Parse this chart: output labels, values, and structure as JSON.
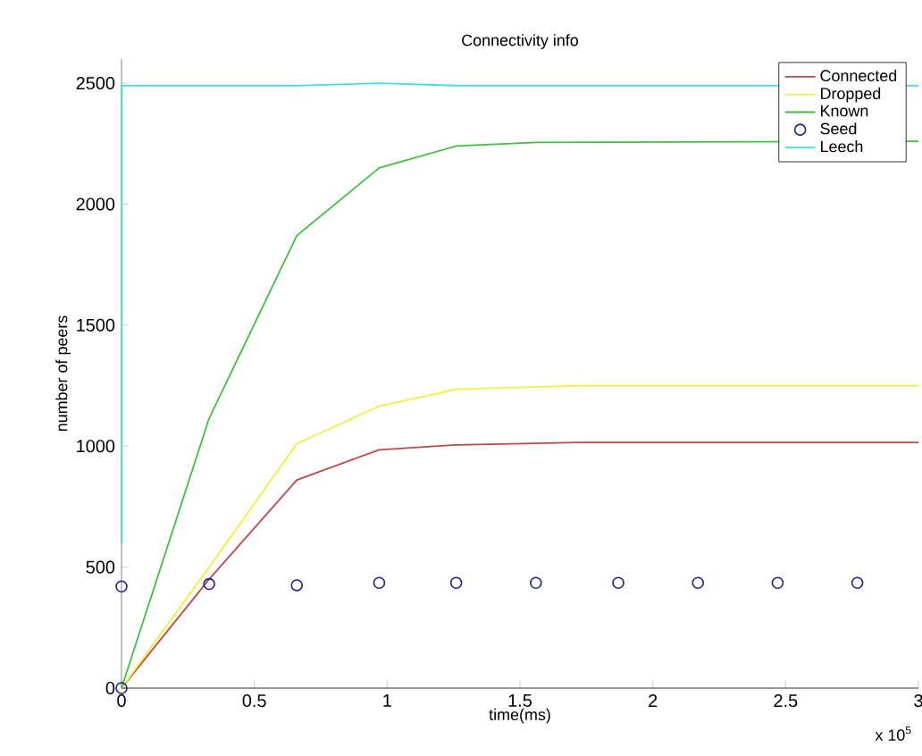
{
  "chart_data": {
    "type": "line",
    "title": "Connectivity info",
    "xlabel": "time(ms)",
    "ylabel": "number of peers",
    "annotations": [
      "x 10$^{5}$"
    ],
    "xlim": [
      0,
      3
    ],
    "ylim": [
      0,
      2600
    ],
    "xticks": [
      0,
      0.5,
      1,
      1.5,
      2,
      2.5,
      3
    ],
    "yticks": [
      0,
      500,
      1000,
      1500,
      2000,
      2500
    ],
    "grid": false,
    "legend": "top right",
    "series": [
      {
        "name": "Connected",
        "color": "#c04848",
        "marker": "none",
        "x": [
          0,
          0.33,
          0.66,
          0.97,
          1.26,
          1.72,
          3
        ],
        "values": [
          0,
          450,
          860,
          985,
          1005,
          1015,
          1015
        ]
      },
      {
        "name": "Dropped",
        "color": "#f0f040",
        "marker": "none",
        "x": [
          0,
          0.33,
          0.66,
          0.97,
          1.26,
          1.72,
          3
        ],
        "values": [
          0,
          500,
          1010,
          1165,
          1235,
          1250,
          1250
        ]
      },
      {
        "name": "Known",
        "color": "#40c040",
        "marker": "none",
        "x": [
          0,
          0.33,
          0.66,
          0.97,
          1.26,
          1.56,
          3
        ],
        "values": [
          0,
          1115,
          1870,
          2150,
          2240,
          2255,
          2260
        ]
      },
      {
        "name": "Seed",
        "type": "scatter",
        "color": "#202090",
        "marker": "circle",
        "x": [
          0,
          0,
          0.33,
          0.66,
          0.97,
          1.26,
          1.56,
          1.87,
          2.17,
          2.47,
          2.77
        ],
        "values": [
          0,
          420,
          430,
          425,
          435,
          435,
          435,
          435,
          435,
          435,
          435
        ]
      },
      {
        "name": "Leech",
        "color": "#40e0e0",
        "marker": "none",
        "x": [
          0,
          0,
          0.66,
          0.97,
          1.26,
          3
        ],
        "values": [
          600,
          2490,
          2490,
          2500,
          2490,
          2490
        ]
      }
    ]
  }
}
